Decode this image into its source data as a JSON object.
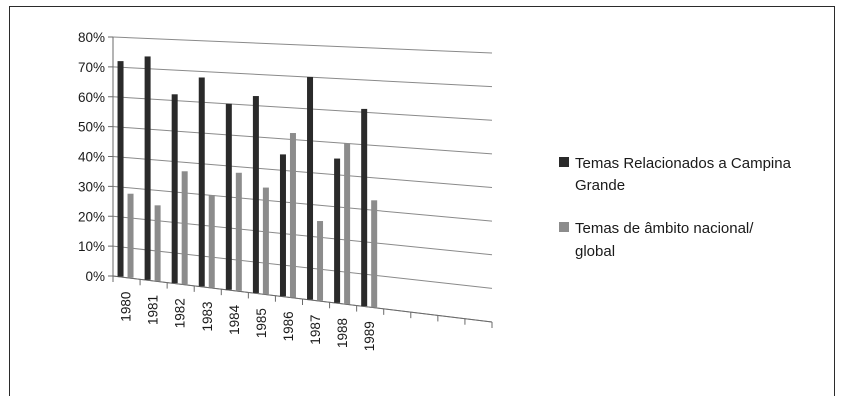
{
  "chart_data": {
    "type": "bar",
    "categories": [
      "1980",
      "1981",
      "1982",
      "1983",
      "1984",
      "1985",
      "1986",
      "1987",
      "1988",
      "1989"
    ],
    "series": [
      {
        "name": "Temas Relacionados a Campina Grande",
        "color": "#2a2a2a",
        "values": [
          72,
          74,
          62,
          68,
          60,
          63,
          45,
          70,
          45,
          61
        ]
      },
      {
        "name": "Temas de âmbito nacional/ global",
        "color": "#8c8c8c",
        "values": [
          28,
          25,
          37,
          30,
          38,
          34,
          52,
          25,
          50,
          33
        ]
      }
    ],
    "y_ticks": [
      "0%",
      "10%",
      "20%",
      "30%",
      "40%",
      "50%",
      "60%",
      "70%",
      "80%"
    ],
    "ylim": [
      0,
      80
    ],
    "grid": true,
    "legend": "right",
    "legend_entries": [
      {
        "lines": [
          "Temas Relacionados a Campina",
          "Grande"
        ]
      },
      {
        "lines": [
          "Temas de âmbito nacional/",
          "global"
        ]
      }
    ]
  }
}
